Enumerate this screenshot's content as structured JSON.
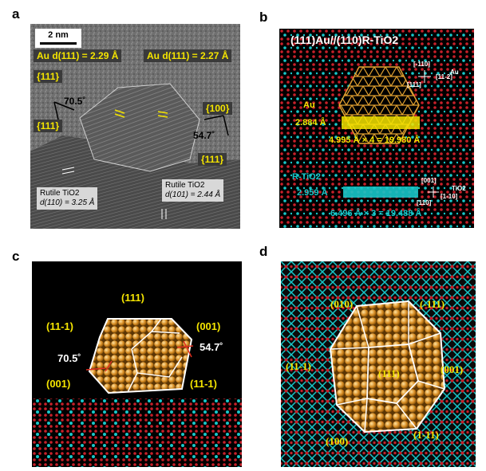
{
  "panels": {
    "a": {
      "letter": "a",
      "scale_bar": "2 nm",
      "d_left": "Au d(111) = 2.29 Å",
      "d_right": "Au d(111) = 2.27 Å",
      "facet_111_top": "{111}",
      "facet_111_left": "{111}",
      "facet_100": "{100}",
      "facet_111_right": "{111}",
      "angle_left": "70.5˚",
      "angle_right": "54.7˚",
      "rutile_left_title": "Rutile TiO2",
      "rutile_left_d": "d(110) = 3.25 Å",
      "rutile_right_title": "Rutile TiO2",
      "rutile_right_d": "d(101) = 2.44 Å"
    },
    "b": {
      "letter": "b",
      "title": "(111)Au//(110)R-TiO2",
      "au_label": "Au",
      "au_spacing": "2.884 Å",
      "au_length": "4.995 Å × 4 = 19.980 Å",
      "tio2_label": "R-TiO2",
      "tio2_spacing": "2.959 Å",
      "tio2_length": "6.496 Å × 3 = 19.488 Å",
      "axes_au": [
        "[-110]",
        "Au",
        "[111]",
        "[11-2]"
      ],
      "axes_tio2": [
        "[001]",
        "TiO2",
        "[110]",
        "[1-10]"
      ]
    },
    "c": {
      "letter": "c",
      "labels": [
        "(111)",
        "(11-1)",
        "(001)",
        "70.5˚",
        "54.7˚",
        "(001)",
        "(11-1)"
      ]
    },
    "d": {
      "letter": "d",
      "labels": [
        "(010)",
        "(-111)",
        "(11-1)",
        "(111)",
        "(001)",
        "(100)",
        "(1-11)"
      ]
    }
  },
  "colors": {
    "yellow": "#f4e400",
    "cyan": "#17c7c9",
    "gold": "#e0a030",
    "red": "#c8202a"
  }
}
